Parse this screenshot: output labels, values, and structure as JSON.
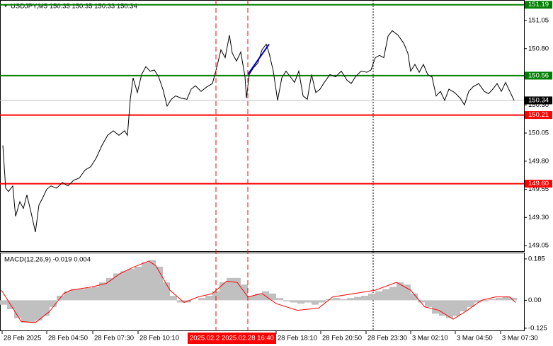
{
  "chart_data": [
    {
      "type": "line",
      "title": "USDJPY,M5  150.35 150.35 150.33 150.34",
      "xlim": [
        0,
        370
      ],
      "ylim": [
        149.0,
        151.226
      ],
      "yticks": [
        151.05,
        {
          "value": 150.8,
          "label": "150.80"
        },
        {
          "value": 150.3,
          "label": "150.30"
        },
        150.05,
        {
          "value": 149.8,
          "label": "149.80"
        },
        149.55,
        {
          "value": 149.3,
          "label": "149.30"
        },
        149.05
      ],
      "series": [
        {
          "color": "#000000",
          "x": [
            2,
            4,
            6,
            9,
            11,
            14,
            16.5,
            19,
            22,
            25,
            27.5,
            30,
            33,
            36,
            40,
            44,
            48,
            52,
            56,
            60,
            64,
            68,
            72,
            76,
            80,
            84,
            88,
            90,
            92,
            94,
            97,
            100,
            103,
            106,
            109,
            112,
            115,
            118,
            121,
            124,
            128,
            132,
            135,
            138,
            142,
            146,
            150,
            153,
            156,
            159,
            162,
            164,
            167,
            170,
            173,
            174,
            176,
            179,
            182,
            185,
            188,
            190,
            193,
            196,
            199,
            202,
            205,
            208,
            211,
            214,
            217,
            220,
            223,
            226,
            229,
            233,
            237,
            241,
            245,
            248,
            251,
            255,
            259,
            262,
            265,
            268,
            271,
            274,
            277,
            281,
            285,
            288,
            290,
            293,
            296,
            299,
            302,
            305,
            308,
            311,
            314,
            317,
            321,
            325,
            328,
            331,
            334,
            338,
            342,
            345,
            348,
            351,
            354,
            357,
            360,
            363
          ],
          "values": [
            149.94,
            149.56,
            149.53,
            149.58,
            149.31,
            149.44,
            149.38,
            149.5,
            149.34,
            149.17,
            149.41,
            149.47,
            149.55,
            149.58,
            149.56,
            149.61,
            149.58,
            149.63,
            149.65,
            149.72,
            149.75,
            149.83,
            149.94,
            150.03,
            150.07,
            150.03,
            150.07,
            150.03,
            150.35,
            150.54,
            150.41,
            150.57,
            150.64,
            150.6,
            150.61,
            150.55,
            150.44,
            150.29,
            150.35,
            150.38,
            150.36,
            150.35,
            150.44,
            150.47,
            150.42,
            150.46,
            150.49,
            150.63,
            150.79,
            150.72,
            150.92,
            150.76,
            150.69,
            150.77,
            150.55,
            150.36,
            150.57,
            150.63,
            150.67,
            150.79,
            150.84,
            150.76,
            150.6,
            150.34,
            150.54,
            150.6,
            150.55,
            150.5,
            150.6,
            150.38,
            150.35,
            150.57,
            150.41,
            150.44,
            150.5,
            150.57,
            150.55,
            150.6,
            150.52,
            150.49,
            150.55,
            150.6,
            150.59,
            150.61,
            150.72,
            150.74,
            150.72,
            150.91,
            150.96,
            150.92,
            150.85,
            150.76,
            150.6,
            150.66,
            150.59,
            150.66,
            150.57,
            150.55,
            150.38,
            150.42,
            150.34,
            150.44,
            150.41,
            150.36,
            150.3,
            150.42,
            150.46,
            150.49,
            150.42,
            150.4,
            150.44,
            150.49,
            150.42,
            150.5,
            150.42,
            150.34
          ]
        },
        {
          "color": "#0000cc",
          "x": [
            175,
            190
          ],
          "values": [
            150.57,
            150.84
          ]
        }
      ],
      "levels": [
        {
          "value": 151.19,
          "label": "151.19",
          "color": "#008000",
          "line_color": "#008000"
        },
        {
          "value": 150.56,
          "label": "150.56",
          "color": "#008000",
          "line_color": "#008000"
        },
        {
          "value": 150.34,
          "label": "150.34",
          "color": "#000000",
          "line_color": "#c0c0c0"
        },
        {
          "value": 150.21,
          "label": "150.21",
          "color": "#ff0000",
          "line_color": "#ff0000"
        },
        {
          "value": 149.6,
          "label": "149.60",
          "color": "#ff0000",
          "line_color": "#ff0000"
        }
      ]
    },
    {
      "type": "macd",
      "title": "MACD(12,26,9) -0.019 0.004",
      "xlim": [
        0,
        370
      ],
      "ylim": [
        -0.135,
        0.21
      ],
      "yticks": [
        0.185,
        {
          "value": 0,
          "label": "0.00"
        },
        -0.125
      ],
      "histogram": {
        "color": "#c0c0c0",
        "x": [
          0,
          5,
          10,
          15,
          20,
          25,
          30,
          35,
          40,
          45,
          50,
          55,
          60,
          65,
          70,
          75,
          80,
          85,
          90,
          95,
          100,
          105,
          110,
          115,
          120,
          125,
          130,
          135,
          140,
          145,
          150,
          155,
          160,
          165,
          170,
          175,
          180,
          185,
          190,
          195,
          200,
          205,
          210,
          215,
          220,
          225,
          230,
          235,
          240,
          245,
          250,
          255,
          260,
          265,
          270,
          275,
          280,
          285,
          290,
          295,
          300,
          305,
          310,
          315,
          320,
          325,
          330,
          335,
          340,
          345,
          350,
          355,
          360
        ],
        "values": [
          -0.02,
          -0.04,
          -0.08,
          -0.1,
          -0.1,
          -0.09,
          -0.07,
          -0.03,
          0.02,
          0.04,
          0.05,
          0.05,
          0.055,
          0.06,
          0.08,
          0.1,
          0.12,
          0.13,
          0.14,
          0.15,
          0.17,
          0.18,
          0.15,
          0.08,
          0.02,
          -0.01,
          -0.01,
          0.0,
          0.01,
          0.02,
          0.04,
          0.08,
          0.1,
          0.1,
          0.07,
          0.02,
          0.03,
          0.04,
          0.03,
          0.01,
          -0.005,
          -0.01,
          -0.015,
          -0.01,
          -0.02,
          -0.01,
          0.005,
          0.01,
          0.005,
          0.01,
          0.015,
          0.02,
          0.03,
          0.04,
          0.05,
          0.06,
          0.08,
          0.07,
          0.03,
          -0.01,
          -0.03,
          -0.06,
          -0.07,
          -0.08,
          -0.07,
          -0.05,
          -0.03,
          -0.01,
          -0.005,
          0.005,
          0.01,
          0.015,
          0.01
        ]
      },
      "signal": {
        "color": "#ff0000",
        "x": [
          1,
          15,
          25,
          35,
          45,
          50,
          65,
          75,
          85,
          95,
          105,
          110,
          120,
          130,
          140,
          150,
          160,
          167.5,
          175,
          185,
          195,
          210,
          225,
          235,
          250,
          265,
          280,
          290,
          300,
          310,
          320,
          330,
          340,
          350,
          360,
          364
        ],
        "values": [
          0.045,
          -0.095,
          -0.1,
          -0.05,
          0.03,
          0.045,
          0.06,
          0.075,
          0.12,
          0.15,
          0.175,
          0.155,
          0.045,
          -0.01,
          0.015,
          0.03,
          0.085,
          0.08,
          0.015,
          0.03,
          -0.015,
          -0.045,
          -0.035,
          0.015,
          0.03,
          0.045,
          0.08,
          0.045,
          -0.03,
          -0.045,
          -0.085,
          -0.045,
          0.0,
          0.015,
          0.015,
          -0.01
        ]
      },
      "xticks": [
        {
          "value": 1.5,
          "label": "28 Feb 2025"
        },
        {
          "value": 33,
          "label": "28 Feb 04:50"
        },
        {
          "value": 65.5,
          "label": "28 Feb 07:30"
        },
        {
          "value": 97.5,
          "label": "28 Feb 10:10"
        },
        {
          "value": 195,
          "label": "28 Feb 18:10"
        },
        {
          "value": 226.5,
          "label": "28 Feb 20:50"
        },
        {
          "value": 258.5,
          "label": "28 Feb 23:30"
        },
        {
          "value": 290,
          "label": "3 Mar 02:10"
        },
        {
          "value": 321.5,
          "label": "3 Mar 04:50"
        },
        {
          "value": 353.5,
          "label": "3 Mar 07:30"
        }
      ],
      "markers": [
        {
          "x": 152.5,
          "label": "2025.02.2",
          "color": "#ff0000"
        },
        {
          "x": 175,
          "label": "2025.02.28 16:40",
          "color": "#ff0000"
        }
      ]
    }
  ]
}
